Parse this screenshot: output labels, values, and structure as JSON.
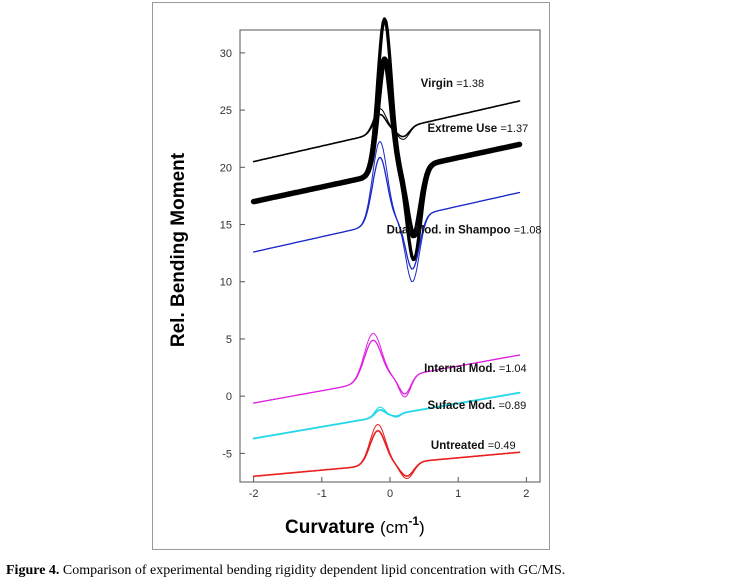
{
  "chart_data": {
    "type": "line",
    "xlabel_main": "Curvature ",
    "xlabel_unit": "(cm",
    "xlabel_exp": "-1",
    "xlabel_close": ")",
    "ylabel": "Rel. Bending Moment",
    "xlim": [
      -2.2,
      2.2
    ],
    "ylim": [
      -7.5,
      32
    ],
    "x_ticks": [
      -2,
      -1,
      0,
      1,
      2
    ],
    "y_ticks": [
      30,
      25,
      20,
      15,
      10,
      5,
      0,
      -5
    ],
    "grid": false,
    "series": [
      {
        "name": "Virgin",
        "value_label": "=1.38",
        "label_x": 0.45,
        "label_y": 27.0,
        "color": "#000000",
        "width": 1.6,
        "baseline": {
          "x0": -2,
          "y0": 20.5,
          "x1": 1.9,
          "y1": 25.8
        },
        "peak": {
          "x": -0.15,
          "h": 1.6,
          "w": 0.13
        },
        "trough": {
          "x": 0.2,
          "h": -0.8,
          "w": 0.12
        },
        "split": 0.5,
        "x_range": [
          -2,
          1.9
        ]
      },
      {
        "name": "Extreme Use",
        "value_label": "=1.37",
        "label_x": 0.55,
        "label_y": 23.1,
        "color": "#000000",
        "width": 5.5,
        "baseline": {
          "x0": -2,
          "y0": 17.0,
          "x1": 1.9,
          "y1": 22.0
        },
        "peak": {
          "x": -0.08,
          "h": 10.0,
          "w": 0.14
        },
        "trough": {
          "x": 0.35,
          "h": -6.0,
          "w": 0.14
        },
        "split": 3.5,
        "x_range": [
          -2,
          1.9
        ]
      },
      {
        "name": "Dual Mod. in Shampoo",
        "value_label": "=1.08",
        "label_x": -0.05,
        "label_y": 14.2,
        "color": "#1a28c8",
        "width": 1.3,
        "baseline": {
          "x0": -2,
          "y0": 12.6,
          "x1": 1.9,
          "y1": 17.8
        },
        "peak": {
          "x": -0.15,
          "h": 5.8,
          "w": 0.15
        },
        "trough": {
          "x": 0.33,
          "h": -4.6,
          "w": 0.14
        },
        "split": 1.4,
        "x_range": [
          -2,
          1.9
        ]
      },
      {
        "name": "Internal Mod.",
        "value_label": "=1.04",
        "label_x": 0.5,
        "label_y": 2.1,
        "color": "#e020e0",
        "width": 1.3,
        "baseline": {
          "x0": -2,
          "y0": -0.6,
          "x1": 1.9,
          "y1": 3.6
        },
        "peak": {
          "x": -0.25,
          "h": 3.6,
          "w": 0.18
        },
        "trough": {
          "x": 0.22,
          "h": -1.6,
          "w": 0.12
        },
        "split": 0.6,
        "x_range": [
          -2,
          1.9
        ]
      },
      {
        "name": "Suface Mod.",
        "value_label": "=0.89",
        "label_x": 0.55,
        "label_y": -1.1,
        "color": "#20d8e8",
        "width": 1.8,
        "baseline": {
          "x0": -2,
          "y0": -3.7,
          "x1": 1.9,
          "y1": 0.3
        },
        "peak": {
          "x": -0.15,
          "h": 0.6,
          "w": 0.1
        },
        "trough": {
          "x": 0.1,
          "h": -0.2,
          "w": 0.08
        },
        "split": 0.25,
        "x_range": [
          -2,
          1.9
        ]
      },
      {
        "name": "Untreated",
        "value_label": "=0.49",
        "label_x": 0.6,
        "label_y": -4.6,
        "color": "#e82020",
        "width": 1.6,
        "baseline": {
          "x0": -2,
          "y0": -7.0,
          "x1": 1.9,
          "y1": -4.9
        },
        "peak": {
          "x": -0.18,
          "h": 3.0,
          "w": 0.16
        },
        "trough": {
          "x": 0.25,
          "h": -1.2,
          "w": 0.14
        },
        "split": 0.55,
        "x_range": [
          -2,
          1.9
        ]
      }
    ]
  },
  "caption": {
    "label": "Figure 4.",
    "text": " Comparison of experimental bending rigidity dependent lipid concentration with GC/MS."
  }
}
